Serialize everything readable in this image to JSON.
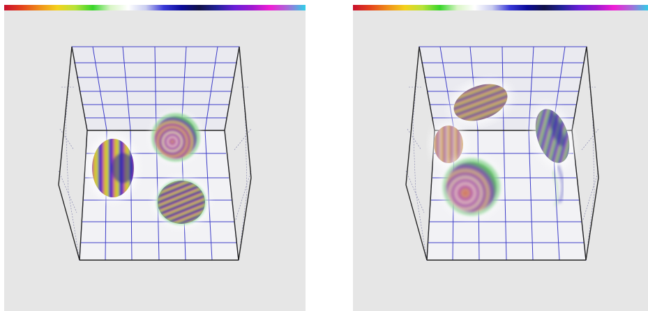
{
  "colormap": {
    "stops": [
      "#c8102e",
      "#e4431c",
      "#f08f1a",
      "#f4d21c",
      "#b8e33a",
      "#38d62a",
      "#d9f5c6",
      "#ffffff",
      "#c9ccf0",
      "#3a3ad8",
      "#0c0c9a",
      "#121248",
      "#22229a",
      "#6a1ed8",
      "#a019d0",
      "#f01ed6",
      "#a56cd9",
      "#2fd0e8"
    ]
  },
  "panels": [
    {
      "id": "left",
      "volume_box": {
        "grid": true,
        "wire_sides": true
      },
      "blobs": [
        {
          "name": "disc-left-edge",
          "stripes": "vertical"
        },
        {
          "name": "sphere-rings-top",
          "stripes": "rings"
        },
        {
          "name": "disc-diagonal-bottom",
          "stripes": "diagonal"
        }
      ]
    },
    {
      "id": "right",
      "volume_box": {
        "grid": true,
        "wire_sides": true
      },
      "blobs": [
        {
          "name": "ellipse-diagonal-top",
          "stripes": "diagonal"
        },
        {
          "name": "disc-small-left",
          "stripes": "vertical"
        },
        {
          "name": "sphere-large-bottom",
          "stripes": "rings"
        },
        {
          "name": "sliver-right-edge",
          "stripes": "smear"
        }
      ]
    }
  ]
}
